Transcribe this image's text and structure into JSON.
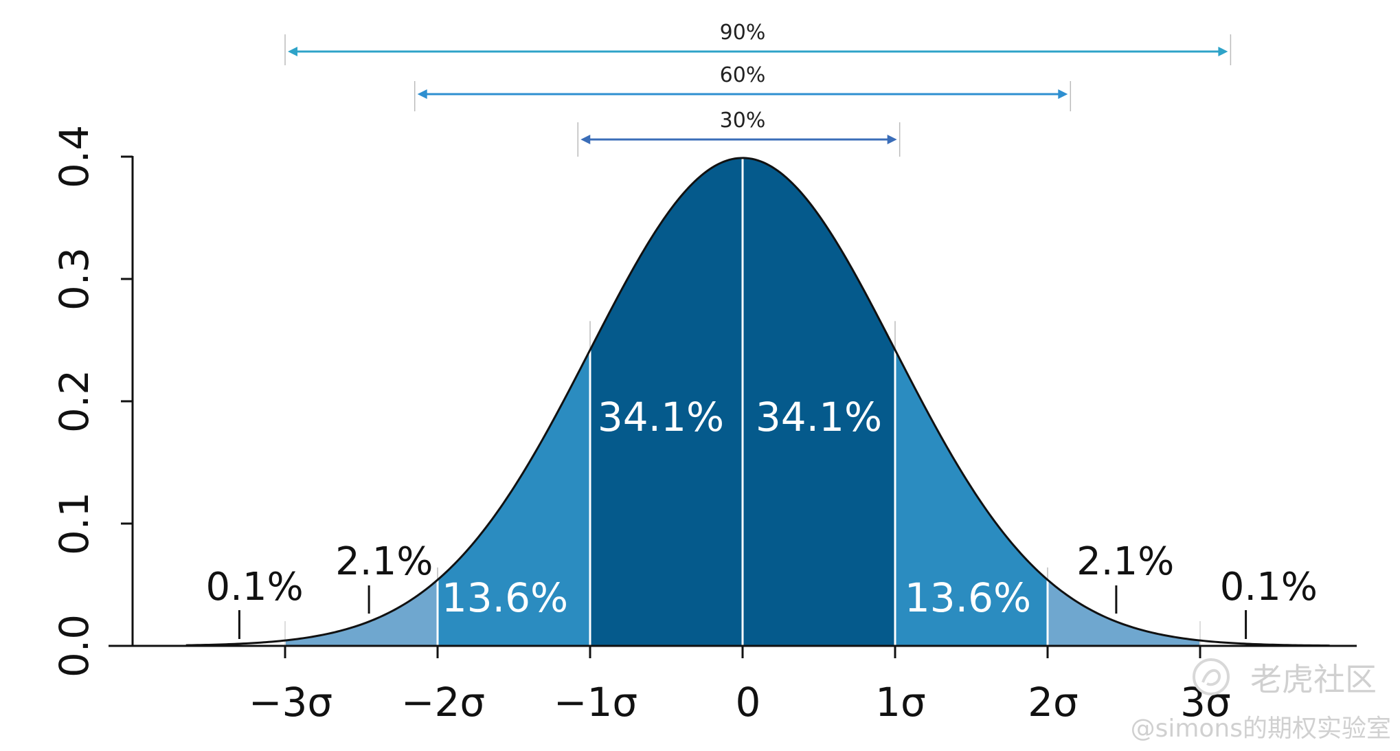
{
  "chart_data": {
    "type": "area",
    "title": "",
    "xlabel": "",
    "ylabel": "",
    "xlim": [
      -3.8,
      4.0
    ],
    "ylim": [
      0.0,
      0.4
    ],
    "grid": false,
    "x_ticks": [
      {
        "value": -3,
        "label": "−3σ"
      },
      {
        "value": -2,
        "label": "−2σ"
      },
      {
        "value": -1,
        "label": "−1σ"
      },
      {
        "value": 0,
        "label": "0"
      },
      {
        "value": 1,
        "label": "1σ"
      },
      {
        "value": 2,
        "label": "2σ"
      },
      {
        "value": 3,
        "label": "3σ"
      }
    ],
    "y_ticks": [
      {
        "value": 0.0,
        "label": "0.0"
      },
      {
        "value": 0.1,
        "label": "0.1"
      },
      {
        "value": 0.2,
        "label": "0.2"
      },
      {
        "value": 0.3,
        "label": "0.3"
      },
      {
        "value": 0.4,
        "label": "0.4"
      }
    ],
    "curve": "standard normal density",
    "regions": [
      {
        "from": -3,
        "to": -2,
        "label": "2.1%",
        "color": "#6fa7cf",
        "label_outside": true
      },
      {
        "from": -2,
        "to": -1,
        "label": "13.6%",
        "color": "#2b8cc0",
        "label_outside": false
      },
      {
        "from": -1,
        "to": 0,
        "label": "34.1%",
        "color": "#055a8c",
        "label_outside": false
      },
      {
        "from": 0,
        "to": 1,
        "label": "34.1%",
        "color": "#055a8c",
        "label_outside": false
      },
      {
        "from": 1,
        "to": 2,
        "label": "13.6%",
        "color": "#2b8cc0",
        "label_outside": false
      },
      {
        "from": 2,
        "to": 3,
        "label": "2.1%",
        "color": "#6fa7cf",
        "label_outside": true
      }
    ],
    "tail_labels": [
      {
        "side": "left",
        "label": "0.1%"
      },
      {
        "side": "right",
        "label": "0.1%"
      }
    ],
    "range_bands": [
      {
        "label": "90%",
        "from": -3.0,
        "to": 3.2,
        "color": "#2ea3c8"
      },
      {
        "label": "60%",
        "from": -2.15,
        "to": 2.15,
        "color": "#2e8fd0"
      },
      {
        "label": "30%",
        "from": -1.08,
        "to": 1.03,
        "color": "#3a6db8"
      }
    ],
    "curve_color": "#111111",
    "axis_color": "#111111"
  },
  "watermark": {
    "brand": "老虎社区",
    "author": "@simons的期权实验室"
  }
}
